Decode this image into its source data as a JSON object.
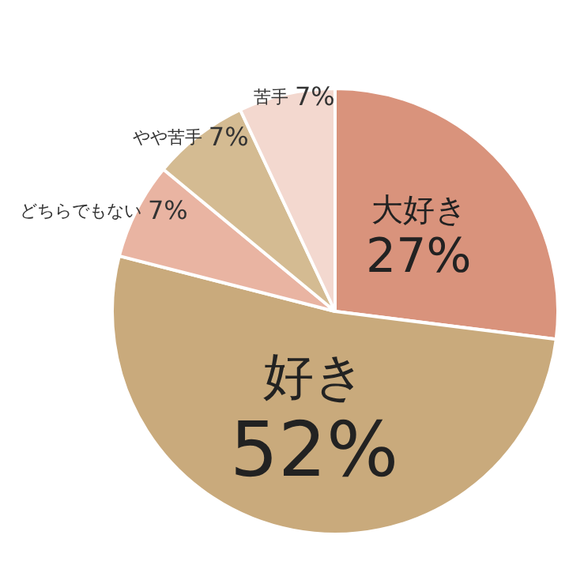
{
  "chart_data": {
    "type": "pie",
    "categories": [
      "大好き",
      "好き",
      "どちらでもない",
      "やや苦手",
      "苦手"
    ],
    "values": [
      27,
      52,
      7,
      7,
      7
    ],
    "colors": [
      "#d9937c",
      "#c9aa7c",
      "#e9b4a2",
      "#d4bb92",
      "#f3d8cf"
    ],
    "value_labels": [
      "27%",
      "52%",
      "7%",
      "7%",
      "7%"
    ],
    "legend": false
  }
}
